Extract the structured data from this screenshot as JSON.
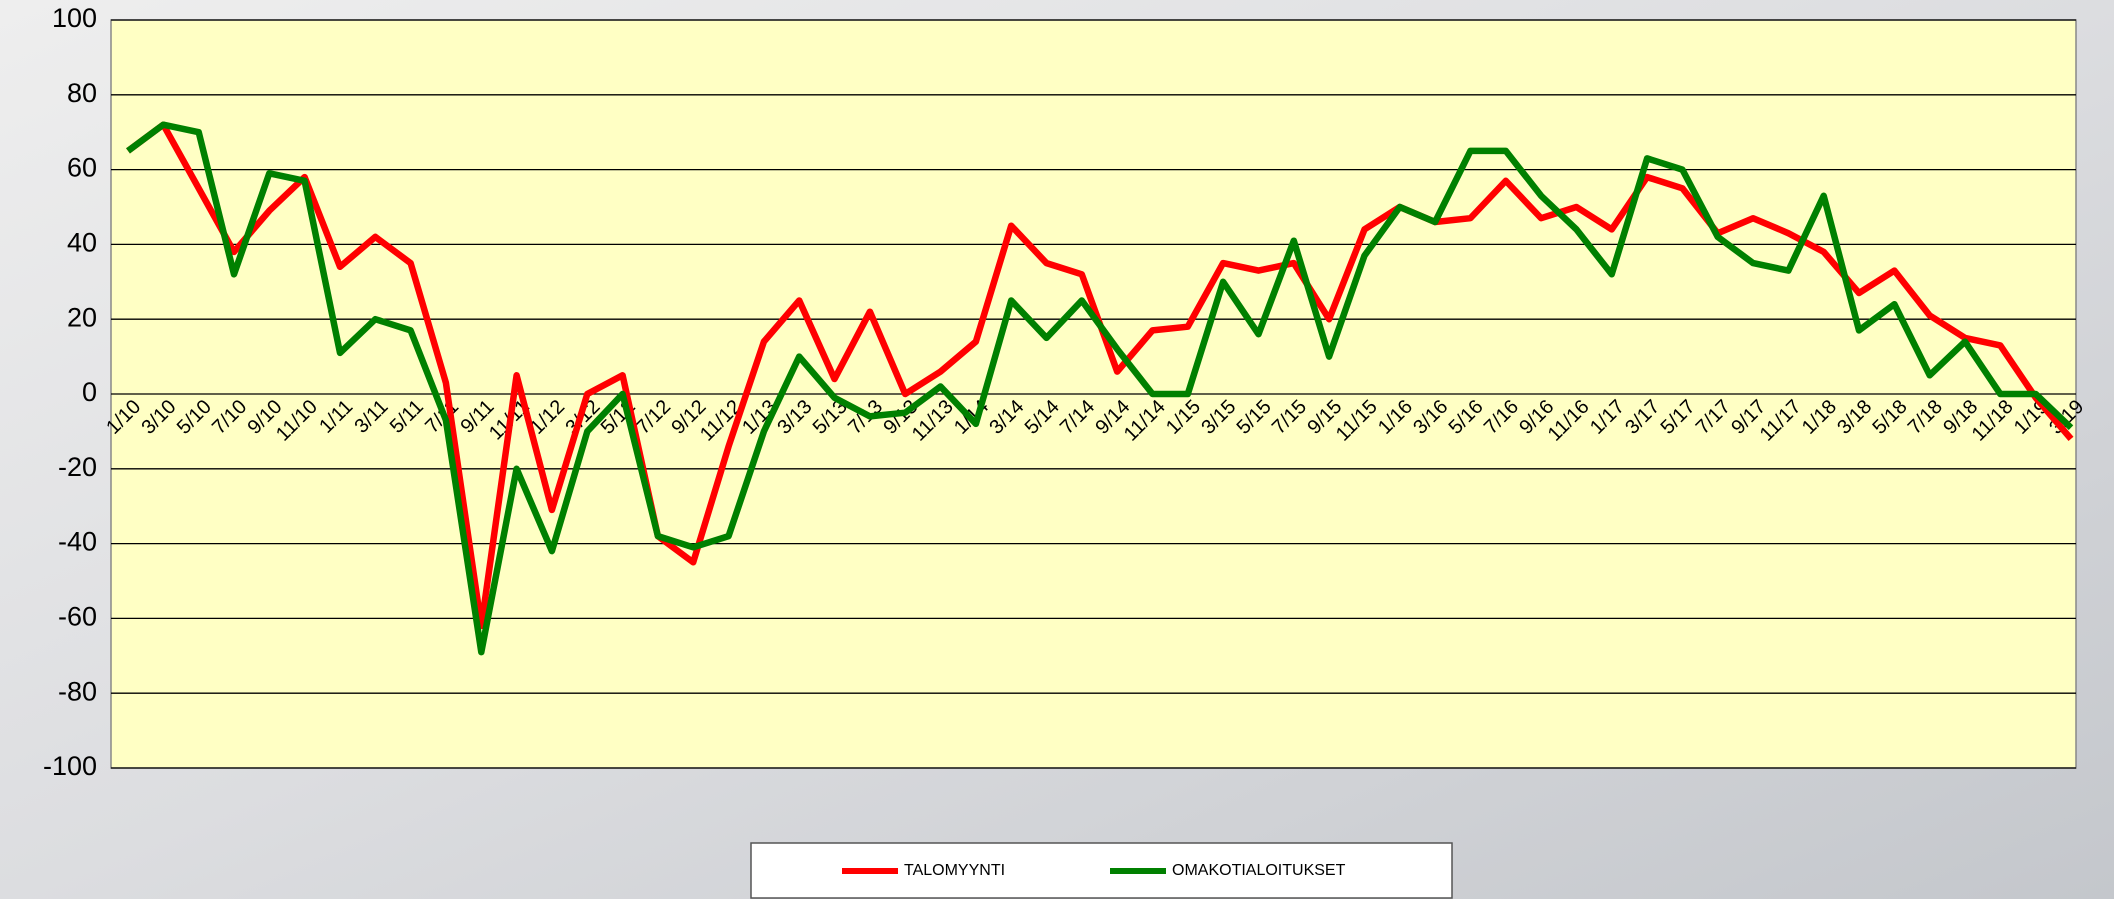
{
  "chart_data": {
    "type": "line",
    "categories": [
      "1/10",
      "3/10",
      "5/10",
      "7/10",
      "9/10",
      "11/10",
      "1/11",
      "3/11",
      "5/11",
      "7/11",
      "9/11",
      "11/11",
      "1/12",
      "3/12",
      "5/12",
      "7/12",
      "9/12",
      "11/12",
      "1/13",
      "3/13",
      "5/13",
      "7/13",
      "9/13",
      "11/13",
      "1/14",
      "3/14",
      "5/14",
      "7/14",
      "9/14",
      "11/14",
      "1/15",
      "3/15",
      "5/15",
      "7/15",
      "9/15",
      "11/15",
      "1/16",
      "3/16",
      "5/16",
      "7/16",
      "9/16",
      "11/16",
      "1/17",
      "3/17",
      "5/17",
      "7/17",
      "9/17",
      "11/17",
      "1/18",
      "3/18",
      "5/18",
      "7/18",
      "9/18",
      "11/18",
      "1/19",
      "3/19"
    ],
    "series": [
      {
        "name": "TALOMYYNTI",
        "color": "#ff0000",
        "values": [
          65,
          72,
          55,
          38,
          49,
          58,
          34,
          42,
          35,
          3,
          -62,
          5,
          -31,
          0,
          5,
          -38,
          -45,
          -14,
          14,
          25,
          4,
          22,
          0,
          6,
          14,
          45,
          35,
          32,
          6,
          17,
          18,
          35,
          33,
          35,
          20,
          44,
          50,
          46,
          47,
          57,
          47,
          50,
          44,
          58,
          55,
          43,
          47,
          43,
          38,
          27,
          33,
          21,
          15,
          13,
          -1,
          -12
        ]
      },
      {
        "name": "OMAKOTIALOITUKSET",
        "color": "#008000",
        "values": [
          65,
          72,
          70,
          32,
          59,
          57,
          11,
          20,
          17,
          -7,
          -69,
          -20,
          -42,
          -10,
          0,
          -38,
          -41,
          -38,
          -10,
          10,
          -1,
          -6,
          -5,
          2,
          -8,
          25,
          15,
          25,
          12,
          0,
          0,
          30,
          16,
          41,
          10,
          37,
          50,
          46,
          65,
          65,
          53,
          44,
          32,
          63,
          60,
          42,
          35,
          33,
          53,
          17,
          24,
          5,
          14,
          0,
          0,
          -9
        ]
      }
    ],
    "ylim": [
      -100,
      100
    ],
    "yticks": [
      -100,
      -80,
      -60,
      -40,
      -20,
      0,
      20,
      40,
      60,
      80,
      100
    ],
    "grid": true
  }
}
